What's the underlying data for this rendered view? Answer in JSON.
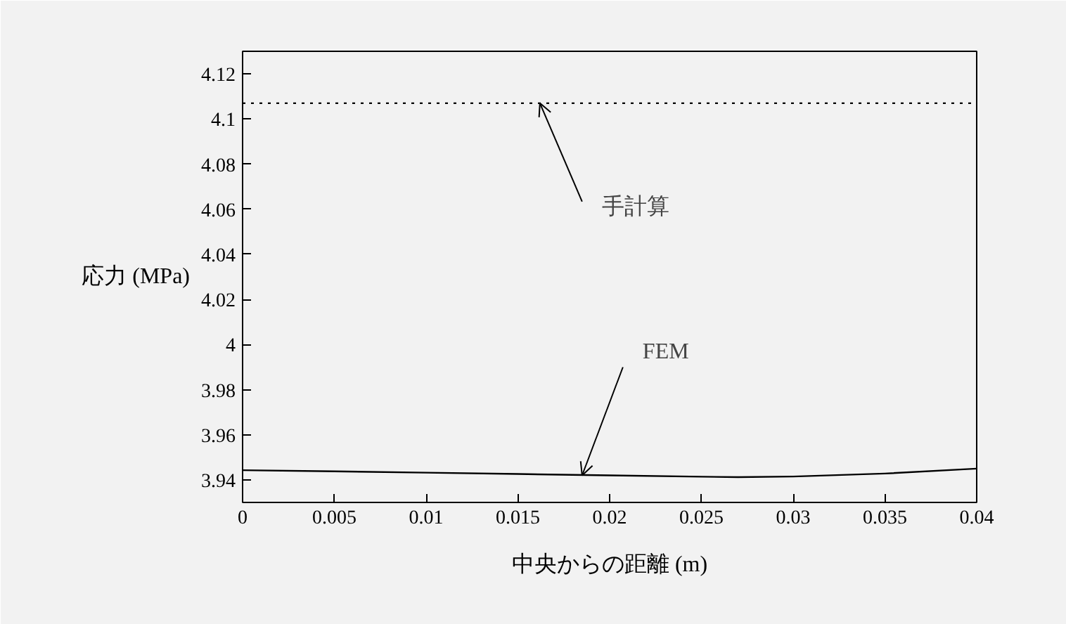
{
  "chart_data": {
    "type": "line",
    "xlabel": "中央からの距離 (m)",
    "ylabel": "応力 (MPa)",
    "x": [
      0,
      0.005,
      0.01,
      0.015,
      0.02,
      0.025,
      0.027,
      0.03,
      0.035,
      0.04
    ],
    "series": [
      {
        "color": "#000000",
        "values": [
          3.9443,
          3.9438,
          3.9432,
          3.9426,
          3.942,
          3.9414,
          3.9412,
          3.9415,
          3.9428,
          3.945
        ]
      }
    ],
    "ref_lines": [
      {
        "axis": "y",
        "value": 4.107,
        "line_style": "dotted",
        "color": "#000000"
      }
    ],
    "annotations": [
      {
        "text": "手計算",
        "x": 0.0162,
        "y": 4.107
      },
      {
        "text": "FEM",
        "x": 0.0185,
        "y": 3.942
      }
    ],
    "xlim": [
      0,
      0.04
    ],
    "ylim": [
      3.93,
      4.13
    ],
    "xticks": [
      0,
      0.005,
      0.01,
      0.015,
      0.02,
      0.025,
      0.03,
      0.035,
      0.04
    ],
    "yticks": [
      3.94,
      3.96,
      3.98,
      4,
      4.02,
      4.04,
      4.06,
      4.08,
      4.1,
      4.12
    ],
    "grid": false,
    "marker": "none",
    "line_style": "solid"
  }
}
